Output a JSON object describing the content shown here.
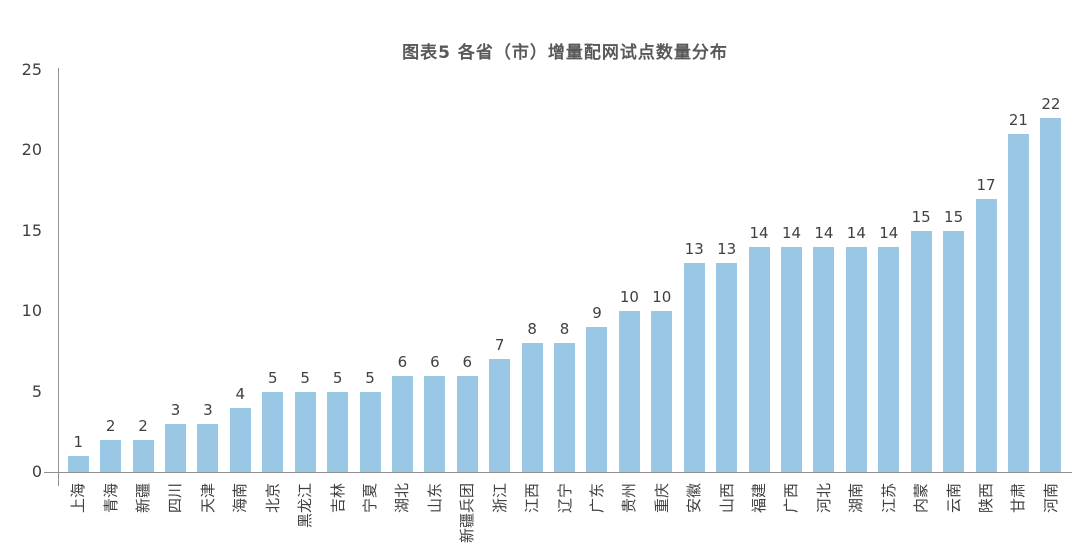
{
  "chart_data": {
    "type": "bar",
    "title": "图表5 各省（市）增量配网试点数量分布",
    "categories": [
      "上海",
      "青海",
      "新疆",
      "四川",
      "天津",
      "海南",
      "北京",
      "黑龙江",
      "吉林",
      "宁夏",
      "湖北",
      "山东",
      "新疆兵团",
      "浙江",
      "江西",
      "辽宁",
      "广东",
      "贵州",
      "重庆",
      "安徽",
      "山西",
      "福建",
      "广西",
      "河北",
      "湖南",
      "江苏",
      "内蒙",
      "云南",
      "陕西",
      "甘肃",
      "河南"
    ],
    "values": [
      1,
      2,
      2,
      3,
      3,
      4,
      5,
      5,
      5,
      5,
      6,
      6,
      6,
      7,
      8,
      8,
      9,
      10,
      10,
      13,
      13,
      14,
      14,
      14,
      14,
      14,
      15,
      15,
      17,
      21,
      22
    ],
    "xlabel": "",
    "ylabel": "",
    "ylim": [
      0,
      25
    ],
    "yticks": [
      0,
      5,
      10,
      15,
      20,
      25
    ],
    "grid": false,
    "legend": "none",
    "value_labels_position": "above-bars",
    "x_label_rotation_deg": 90,
    "colors": {
      "bar": "#9BC7E6",
      "value_label": "#404040",
      "tick_label": "#404040",
      "axis_line": "#909090",
      "title": "#595959"
    }
  }
}
